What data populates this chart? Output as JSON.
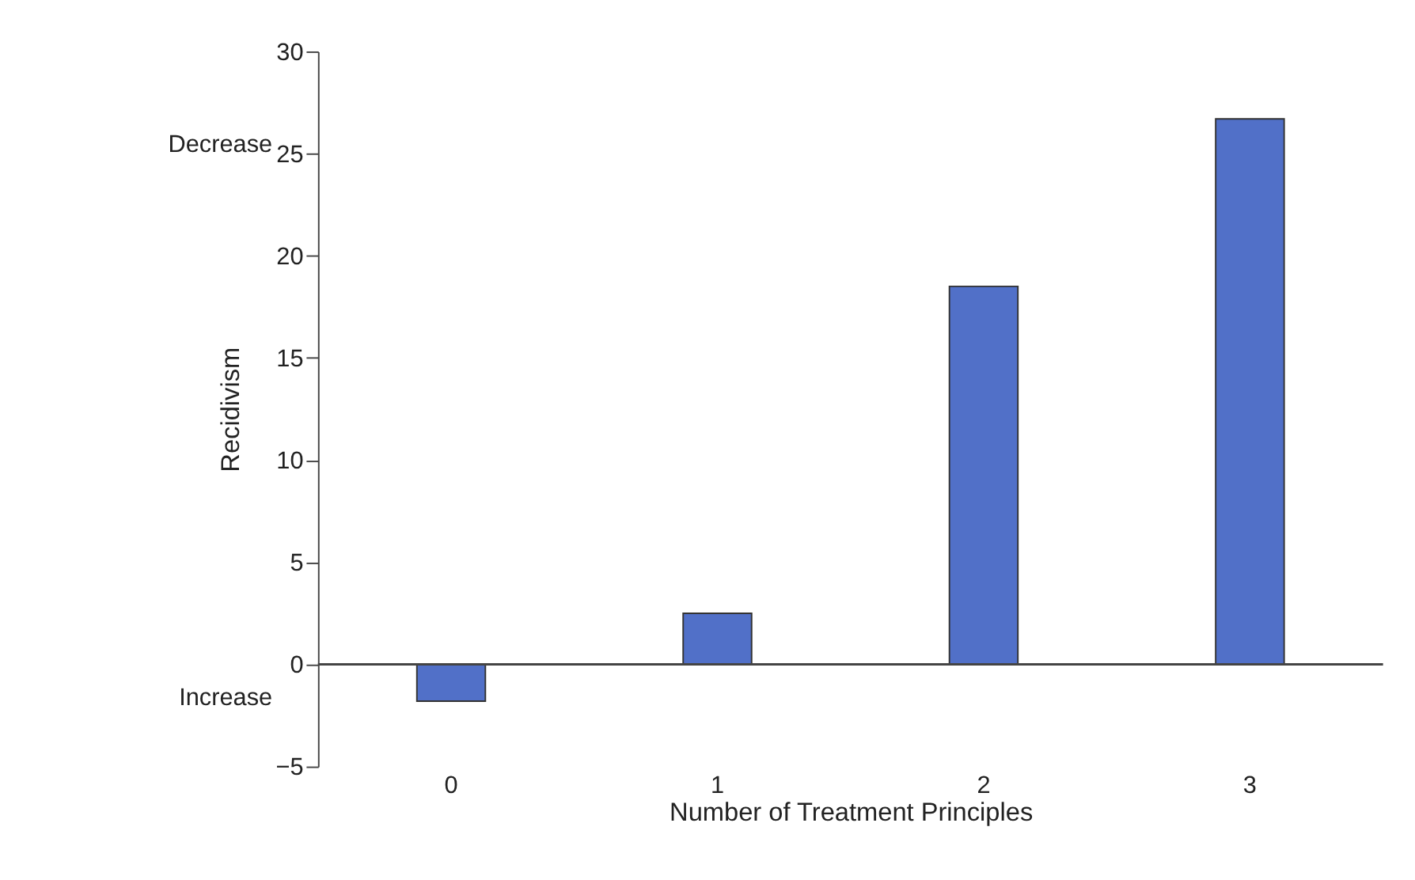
{
  "chart_data": {
    "type": "bar",
    "xlabel": "Number of Treatment Principles",
    "ylabel": "Recidivism",
    "categories": [
      "0",
      "1",
      "2",
      "3"
    ],
    "values": [
      -1.8,
      2.5,
      18.5,
      26.7
    ],
    "color": "#5170c8",
    "ylim": [
      -5,
      30
    ],
    "yticks": [
      -5,
      0,
      5,
      10,
      15,
      20,
      25,
      30
    ],
    "annotations": [
      "Decrease",
      "Increase"
    ]
  }
}
